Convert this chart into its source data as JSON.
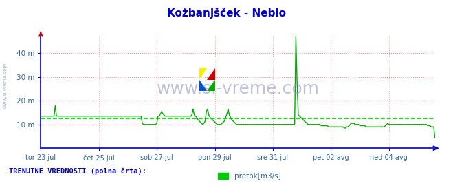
{
  "title": "Kožbanjšček - Neblo",
  "title_color": "#0000cc",
  "title_fontsize": 11,
  "bg_color": "#ffffff",
  "plot_bg_color": "#ffffff",
  "ylim": [
    0,
    48
  ],
  "yticks": [
    10,
    20,
    30,
    40
  ],
  "ytick_labels": [
    "10 m",
    "20 m",
    "30 m",
    "40 m"
  ],
  "xtick_labels": [
    "tor 23 jul",
    "čet 25 jul",
    "sob 27 jul",
    "pon 29 jul",
    "sre 31 jul",
    "pet 02 avg",
    "ned 04 avg"
  ],
  "hline_y": 12.5,
  "hline_color": "#00cc00",
  "hline_style": "--",
  "grid_h_color": "#ff8888",
  "grid_v_color": "#ffaaaa",
  "axis_color": "#0000cc",
  "line_color": "#00aa00",
  "line_width": 1.0,
  "watermark": "www.si-vreme.com",
  "watermark_color": "#9999bb",
  "watermark_fontsize": 18,
  "sidebar_text": "www.si-vreme.com",
  "sidebar_color": "#7799bb",
  "legend_label": "pretok[m3/s]",
  "legend_color": "#00cc00",
  "bottom_text": "TRENUTNE VREDNOSTI (polna črta):",
  "bottom_text_color": "#0000aa",
  "tick_color": "#336699",
  "pretok_data": [
    13.5,
    13.5,
    13.5,
    13.5,
    13.5,
    13.5,
    13.5,
    13.5,
    13.5,
    13.5,
    13.5,
    13.5,
    18.0,
    13.5,
    13.5,
    13.5,
    13.5,
    13.5,
    13.5,
    13.5,
    13.5,
    13.5,
    13.5,
    13.5,
    13.5,
    13.5,
    13.5,
    13.5,
    13.5,
    13.5,
    13.5,
    13.5,
    13.5,
    13.5,
    13.5,
    13.5,
    13.5,
    13.5,
    13.5,
    13.5,
    13.5,
    13.5,
    13.5,
    13.5,
    13.5,
    13.5,
    13.5,
    13.5,
    13.5,
    13.5,
    13.5,
    13.5,
    13.5,
    13.5,
    13.5,
    13.5,
    13.5,
    13.5,
    13.5,
    13.5,
    13.5,
    13.5,
    13.5,
    13.5,
    13.5,
    13.5,
    13.5,
    13.5,
    13.5,
    13.5,
    13.5,
    13.5,
    13.5,
    13.5,
    13.5,
    13.5,
    13.5,
    13.5,
    13.5,
    13.5,
    13.5,
    13.5,
    13.5,
    13.5,
    10.5,
    10.0,
    10.0,
    10.0,
    10.0,
    10.0,
    10.0,
    10.0,
    10.0,
    10.0,
    10.0,
    10.0,
    10.5,
    13.5,
    13.5,
    14.5,
    15.5,
    14.5,
    14.0,
    13.5,
    13.5,
    13.5,
    13.5,
    13.5,
    13.5,
    13.5,
    13.5,
    13.5,
    13.5,
    13.5,
    13.5,
    13.5,
    13.5,
    13.5,
    13.5,
    13.5,
    13.5,
    13.5,
    13.5,
    13.5,
    13.5,
    14.0,
    16.5,
    14.0,
    13.5,
    13.0,
    12.0,
    11.5,
    11.0,
    10.5,
    10.0,
    10.5,
    11.5,
    15.5,
    16.5,
    14.0,
    13.0,
    12.5,
    12.0,
    11.5,
    11.0,
    10.5,
    10.0,
    10.0,
    10.0,
    10.0,
    10.5,
    11.0,
    11.5,
    13.0,
    14.5,
    16.5,
    14.0,
    13.0,
    12.0,
    11.5,
    11.0,
    10.5,
    10.0,
    10.0,
    10.0,
    10.0,
    10.0,
    10.0,
    10.0,
    10.0,
    10.0,
    10.0,
    10.0,
    10.0,
    10.0,
    10.0,
    10.0,
    10.0,
    10.0,
    10.0,
    10.0,
    10.0,
    10.0,
    10.0,
    10.0,
    10.0,
    10.0,
    10.0,
    10.0,
    10.0,
    10.0,
    10.0,
    10.0,
    10.0,
    10.0,
    10.0,
    10.0,
    10.0,
    10.0,
    10.0,
    10.0,
    10.0,
    10.0,
    10.0,
    10.0,
    10.0,
    10.0,
    10.0,
    10.0,
    10.0,
    10.0,
    47.0,
    28.0,
    14.0,
    13.5,
    13.0,
    12.5,
    12.0,
    11.5,
    11.0,
    10.5,
    10.0,
    10.0,
    10.0,
    10.0,
    10.0,
    10.0,
    10.0,
    10.0,
    10.0,
    10.0,
    10.0,
    9.5,
    9.5,
    9.5,
    9.5,
    9.5,
    9.5,
    9.0,
    9.0,
    9.0,
    9.0,
    9.0,
    9.0,
    9.0,
    9.0,
    9.0,
    9.0,
    9.0,
    9.0,
    9.0,
    8.5,
    8.5,
    9.0,
    9.0,
    9.5,
    10.0,
    10.5,
    10.5,
    10.5,
    10.0,
    10.0,
    10.0,
    10.0,
    9.5,
    9.5,
    9.5,
    9.5,
    9.5,
    9.0,
    9.0,
    9.0,
    9.0,
    9.0,
    9.0,
    9.0,
    9.0,
    9.0,
    9.0,
    9.0,
    9.0,
    9.0,
    9.0,
    9.0,
    9.0,
    9.5,
    10.0,
    10.5,
    10.0,
    10.0,
    10.0,
    10.0,
    10.0,
    10.0,
    10.0,
    10.0,
    10.0,
    10.0,
    10.0,
    10.0,
    10.0,
    10.0,
    10.0,
    10.0,
    10.0,
    10.0,
    10.0,
    10.0,
    10.0,
    10.0,
    10.0,
    10.0,
    10.0,
    10.0,
    10.0,
    10.0,
    10.0,
    10.0,
    10.0,
    10.0,
    9.5,
    9.5,
    9.5,
    9.0,
    9.0,
    9.0,
    4.5
  ],
  "vline_positions": [
    0,
    48,
    96,
    144,
    192,
    240,
    288
  ],
  "vline_color": "#ffaaaa",
  "vline_style": ":"
}
